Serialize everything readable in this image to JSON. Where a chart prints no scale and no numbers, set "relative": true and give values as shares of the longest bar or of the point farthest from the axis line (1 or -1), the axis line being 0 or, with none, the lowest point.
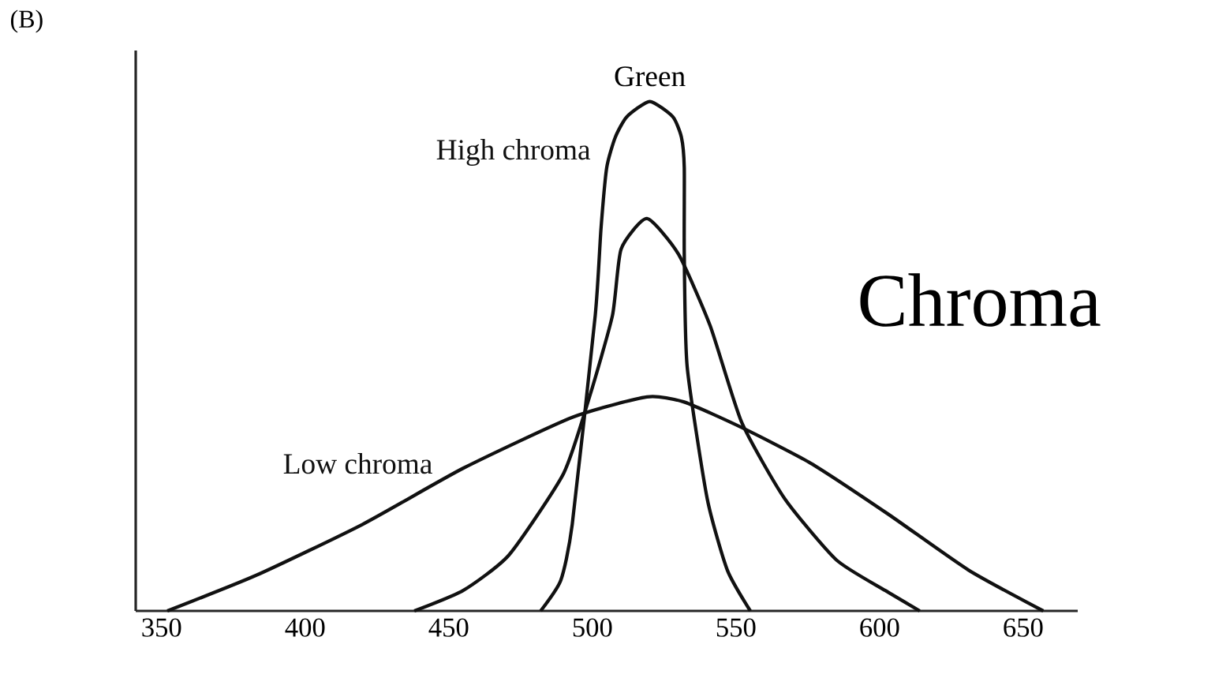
{
  "chart_data": {
    "type": "line",
    "title": "Chroma",
    "relative": true,
    "line_style": "solid",
    "xlim": [
      341,
      669
    ],
    "xticks": [
      350,
      400,
      450,
      500,
      550,
      600,
      650
    ],
    "annotations": [
      "(B)",
      {
        "text": "Green",
        "x": 520,
        "y": 1
      }
    ],
    "series": [
      {
        "name": "High chroma",
        "color": "#111111",
        "x": [
          482,
          489,
          493,
          501,
          503,
          505,
          508,
          512,
          520,
          528,
          531,
          532,
          532,
          533,
          540,
          547,
          555
        ],
        "values": [
          0,
          0.06,
          0.17,
          0.58,
          0.75,
          0.87,
          0.93,
          0.97,
          1,
          0.97,
          0.93,
          0.87,
          0.7,
          0.48,
          0.22,
          0.08,
          0
        ]
      },
      {
        "color": "#111111",
        "x": [
          438,
          455,
          471,
          490,
          499,
          507,
          510,
          519,
          530,
          541,
          552,
          567,
          585,
          602,
          614
        ],
        "values": [
          0,
          0.04,
          0.11,
          0.27,
          0.42,
          0.58,
          0.71,
          0.77,
          0.7,
          0.56,
          0.37,
          0.22,
          0.1,
          0.04,
          0
        ]
      },
      {
        "name": "Low chroma",
        "color": "#111111",
        "x": [
          352,
          383,
          420,
          455,
          493,
          519,
          532,
          552,
          576,
          603,
          631,
          657
        ],
        "values": [
          0,
          0.07,
          0.17,
          0.28,
          0.38,
          0.42,
          0.41,
          0.36,
          0.29,
          0.19,
          0.08,
          0
        ]
      }
    ]
  }
}
